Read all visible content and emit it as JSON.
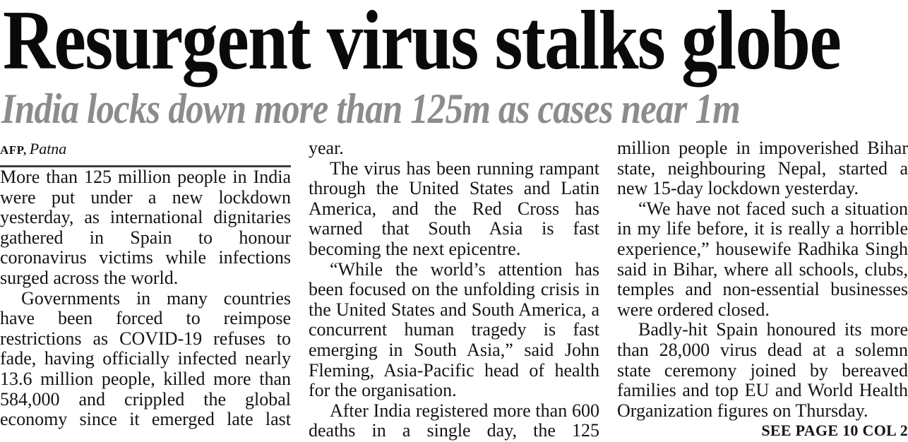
{
  "page": {
    "headline": "Resurgent virus stalks globe",
    "subheadline": "India locks down more than 125m as cases near 1m",
    "byline": {
      "agency": "AFP,",
      "location": "Patna"
    },
    "article": {
      "col1": {
        "p1": "More than 125 million people in India were put under a new lockdown yesterday, as international dignitaries gathered in Spain to honour coronavirus victims while infections surged across the world.",
        "p2": "Governments in many countries have been forced to reimpose restrictions as COVID-19 refuses to fade, having officially infected nearly 13.6 million people, killed more than 584,000 and crippled the global economy since it emerged late last"
      },
      "col2": {
        "p1": "year.",
        "p2": "The virus has been running rampant through the United States and Latin America, and the Red Cross has warned that South Asia is fast becoming the next epicentre.",
        "p3": "“While the world’s attention has been focused on the unfolding crisis in the United States and South America, a concurrent human tragedy is fast emerging in South Asia,” said John Fleming, Asia-Pacific head of health for the organisation.",
        "p4": "After India registered more than 600 deaths in a single day, the 125"
      },
      "col3": {
        "p1": "million people in impoverished Bihar state, neighbouring Nepal, started a new 15-day lockdown yesterday.",
        "p2": "“We have not faced such a situation in my life before, it is really a horrible experience,” housewife Radhika Singh said in Bihar, where all schools, clubs, temples and non-essential businesses were ordered closed.",
        "p3": "Badly-hit Spain honoured its more than 28,000 virus dead at a solemn state ceremony joined by bereaved families and top EU and World Health Organization figures on Thursday.",
        "see_page": "SEE PAGE 10 COL 2"
      }
    },
    "colors": {
      "headline_text": "#0a0a0a",
      "subheadline_gray": "#8a8c8e",
      "body_text": "#141414",
      "rule": "#3d3d3d",
      "background": "#ffffff"
    }
  }
}
